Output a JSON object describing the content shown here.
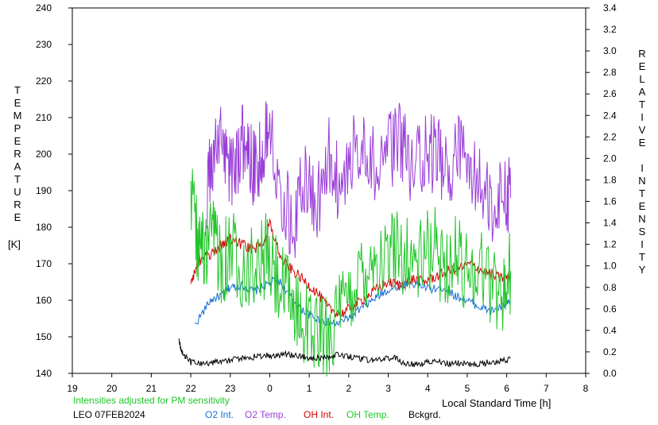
{
  "chart_data": {
    "type": "line",
    "xlabel": "Local Standard Time [h]",
    "x_ticks": [
      "19",
      "20",
      "21",
      "22",
      "23",
      "0",
      "1",
      "2",
      "3",
      "4",
      "5",
      "6",
      "7",
      "8"
    ],
    "x_range": [
      19,
      32
    ],
    "left_axis": {
      "label_letters": [
        "T",
        "E",
        "M",
        "P",
        "E",
        "R",
        "A",
        "T",
        "U",
        "R",
        "E"
      ],
      "unit": "[K]",
      "range": [
        140,
        240
      ],
      "ticks": [
        "140",
        "150",
        "160",
        "170",
        "180",
        "190",
        "200",
        "210",
        "220",
        "230",
        "240"
      ]
    },
    "right_axis": {
      "label_letters": [
        "R",
        "E",
        "L",
        "A",
        "T",
        "I",
        "V",
        "E",
        "",
        "I",
        "N",
        "T",
        "E",
        "N",
        "S",
        "I",
        "T",
        "Y"
      ],
      "range": [
        0.0,
        3.4
      ],
      "ticks": [
        "0.0",
        "0.2",
        "0.4",
        "0.6",
        "0.8",
        "1.0",
        "1.2",
        "1.4",
        "1.6",
        "1.8",
        "2.0",
        "2.2",
        "2.4",
        "2.6",
        "2.8",
        "3.0",
        "3.2",
        "3.4"
      ]
    },
    "note": "Intensities adjusted for PM sensitivity",
    "station": "LEO 07FEB2024",
    "series": [
      {
        "name": "O2 Int.",
        "color": "#1a6fd6",
        "axis": "right",
        "x": [
          22.1,
          22.5,
          22.8,
          23.0,
          23.3,
          23.6,
          23.9,
          24.2,
          24.5,
          24.8,
          25.1,
          25.4,
          25.7,
          26.0,
          26.3,
          26.6,
          26.9,
          27.2,
          27.5,
          27.8,
          28.1,
          28.4,
          28.7,
          29.0,
          29.3,
          29.6,
          29.9,
          30.1
        ],
        "y": [
          0.45,
          0.68,
          0.73,
          0.8,
          0.82,
          0.76,
          0.82,
          0.88,
          0.72,
          0.6,
          0.52,
          0.48,
          0.46,
          0.52,
          0.6,
          0.68,
          0.76,
          0.8,
          0.84,
          0.82,
          0.78,
          0.8,
          0.72,
          0.68,
          0.62,
          0.58,
          0.62,
          0.66
        ]
      },
      {
        "name": "O2 Temp.",
        "color": "#9a3ed8",
        "axis": "left",
        "x": [
          22.4,
          22.6,
          22.8,
          23.0,
          23.2,
          23.4,
          23.6,
          23.8,
          24.0,
          24.3,
          24.6,
          24.9,
          25.2,
          25.5,
          25.8,
          26.1,
          26.4,
          26.7,
          27.0,
          27.3,
          27.6,
          27.9,
          28.2,
          28.5,
          28.8,
          29.1,
          29.4,
          29.7,
          30.0,
          30.1
        ],
        "y": [
          190,
          200,
          205,
          195,
          200,
          205,
          195,
          200,
          210,
          190,
          180,
          195,
          185,
          200,
          190,
          200,
          205,
          195,
          200,
          205,
          195,
          200,
          200,
          195,
          200,
          195,
          190,
          185,
          190,
          188
        ]
      },
      {
        "name": "OH Int.",
        "color": "#d40000",
        "axis": "right",
        "x": [
          22.0,
          22.2,
          22.5,
          22.8,
          23.0,
          23.3,
          23.6,
          23.9,
          24.0,
          24.3,
          24.6,
          24.9,
          25.2,
          25.5,
          25.8,
          26.1,
          26.4,
          26.7,
          27.0,
          27.3,
          27.6,
          27.9,
          28.2,
          28.5,
          28.8,
          29.1,
          29.4,
          29.7,
          30.0,
          30.1
        ],
        "y": [
          0.85,
          1.05,
          1.1,
          1.2,
          1.25,
          1.2,
          1.15,
          1.25,
          1.4,
          1.05,
          0.95,
          0.85,
          0.75,
          0.6,
          0.55,
          0.62,
          0.7,
          0.78,
          0.85,
          0.82,
          0.88,
          0.85,
          0.9,
          0.95,
          0.98,
          1.02,
          0.95,
          0.9,
          0.88,
          0.92
        ]
      },
      {
        "name": "OH Temp.",
        "color": "#22c52a",
        "axis": "left",
        "x": [
          22.0,
          22.2,
          22.4,
          22.6,
          22.8,
          23.0,
          23.3,
          23.6,
          23.9,
          24.2,
          24.5,
          24.8,
          25.1,
          25.4,
          25.7,
          26.0,
          26.3,
          26.6,
          26.9,
          27.2,
          27.5,
          27.8,
          28.1,
          28.4,
          28.7,
          29.0,
          29.3,
          29.6,
          29.9,
          30.1
        ],
        "y": [
          190,
          175,
          172,
          178,
          170,
          175,
          170,
          168,
          172,
          165,
          160,
          155,
          152,
          150,
          155,
          160,
          168,
          172,
          170,
          175,
          172,
          170,
          175,
          170,
          172,
          168,
          170,
          165,
          162,
          168
        ]
      },
      {
        "name": "Bckgrd.",
        "color": "#000000",
        "axis": "right",
        "x": [
          21.7,
          21.8,
          22.0,
          22.3,
          22.6,
          22.9,
          23.2,
          23.5,
          23.8,
          24.1,
          24.4,
          24.7,
          25.0,
          25.3,
          25.6,
          25.9,
          26.2,
          26.5,
          26.8,
          27.1,
          27.4,
          27.7,
          28.0,
          28.3,
          28.6,
          28.9,
          29.2,
          29.5,
          29.8,
          30.1
        ],
        "y": [
          0.3,
          0.18,
          0.1,
          0.09,
          0.11,
          0.12,
          0.13,
          0.15,
          0.16,
          0.17,
          0.18,
          0.16,
          0.15,
          0.14,
          0.17,
          0.16,
          0.14,
          0.12,
          0.13,
          0.15,
          0.1,
          0.08,
          0.11,
          0.1,
          0.09,
          0.1,
          0.08,
          0.1,
          0.11,
          0.14
        ]
      }
    ]
  }
}
